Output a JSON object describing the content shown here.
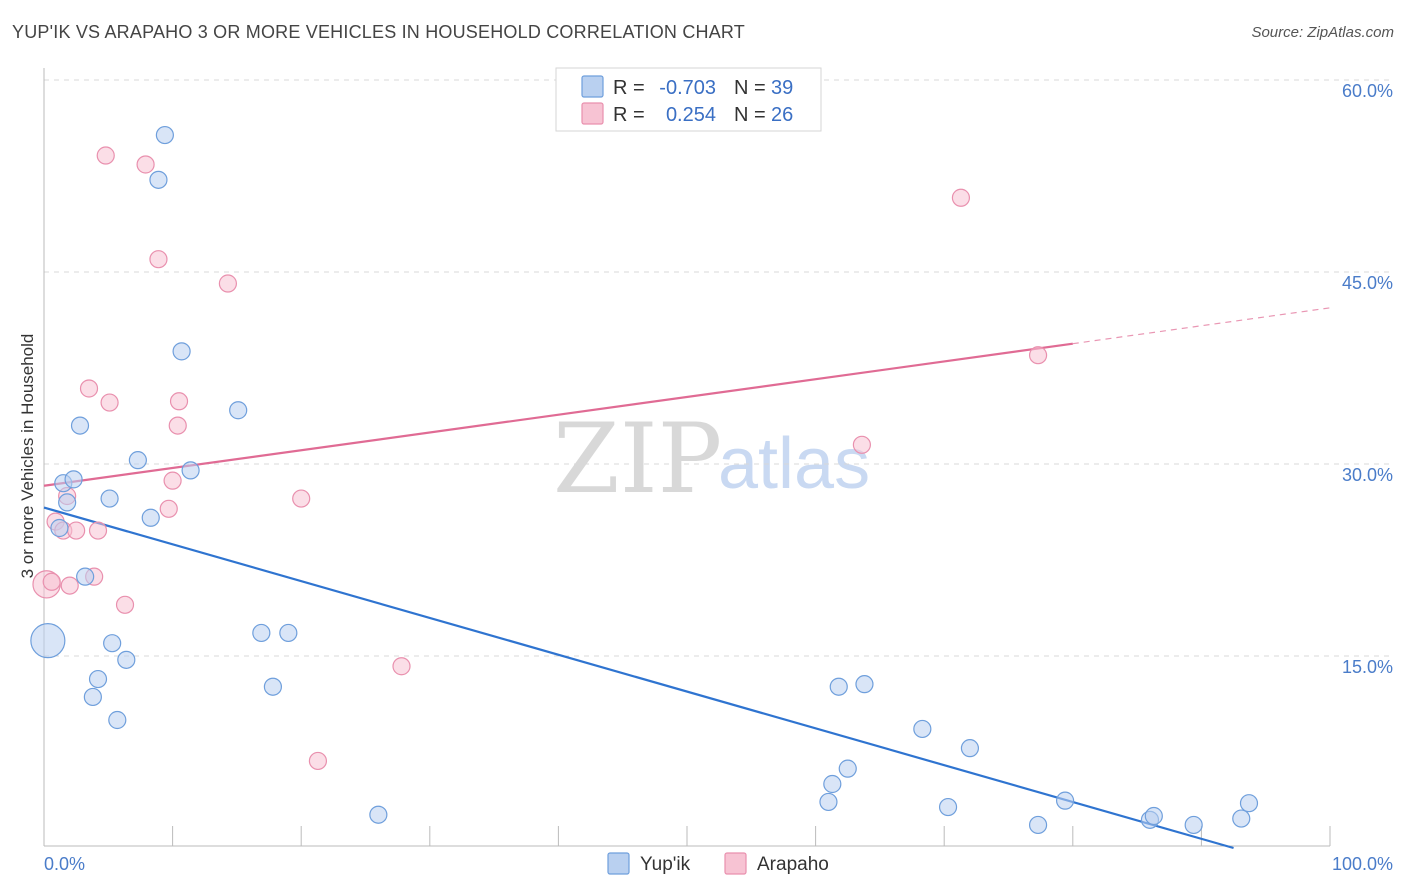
{
  "title": "YUP'IK VS ARAPAHO 3 OR MORE VEHICLES IN HOUSEHOLD CORRELATION CHART",
  "source": "Source: ZipAtlas.com",
  "watermark": {
    "zip": "ZIP",
    "atlas": "atlas"
  },
  "colors": {
    "yupik_fill": "#b9d0f0",
    "yupik_stroke": "#6f9fdc",
    "yupik_line": "#2f74d0",
    "arapaho_fill": "#f7c3d3",
    "arapaho_stroke": "#e990ae",
    "arapaho_line": "#e06b94",
    "grid": "#d8d8d8",
    "axis_text": "#4a7cc9"
  },
  "legend": {
    "r_label": "R =",
    "n_label": "N =",
    "rows": [
      {
        "r": "-0.703",
        "n": "39"
      },
      {
        "r": "0.254",
        "n": "26"
      }
    ]
  },
  "chart_data": {
    "type": "scatter",
    "title": "YUP'IK VS ARAPAHO 3 OR MORE VEHICLES IN HOUSEHOLD CORRELATION CHART",
    "xlabel": "",
    "ylabel": "3 or more Vehicles in Household",
    "xlim": [
      0,
      100
    ],
    "ylim": [
      0,
      63
    ],
    "x_tick_labels": [
      "0.0%",
      "100.0%"
    ],
    "y_ticks": [
      15,
      30,
      45,
      60
    ],
    "y_tick_labels": [
      "15.0%",
      "30.0%",
      "45.0%",
      "60.0%"
    ],
    "grid": true,
    "series": [
      {
        "name": "Yup'ik",
        "points": [
          [
            0.3,
            16.2,
            2.0
          ],
          [
            1.5,
            28.5,
            1
          ],
          [
            1.8,
            27.0,
            1
          ],
          [
            1.2,
            25.0,
            1
          ],
          [
            2.3,
            28.8,
            1
          ],
          [
            2.8,
            33.0,
            1
          ],
          [
            3.2,
            21.2,
            1
          ],
          [
            3.8,
            11.8,
            1
          ],
          [
            4.2,
            13.2,
            1
          ],
          [
            5.1,
            27.3,
            1
          ],
          [
            5.3,
            16.0,
            1
          ],
          [
            5.7,
            10.0,
            1
          ],
          [
            6.4,
            14.7,
            1
          ],
          [
            7.3,
            30.3,
            1
          ],
          [
            8.3,
            25.8,
            1
          ],
          [
            8.9,
            52.2,
            1
          ],
          [
            9.4,
            55.7,
            1
          ],
          [
            10.7,
            38.8,
            1
          ],
          [
            11.4,
            29.5,
            1
          ],
          [
            15.1,
            34.2,
            1
          ],
          [
            16.9,
            16.8,
            1
          ],
          [
            17.8,
            12.6,
            1
          ],
          [
            19.0,
            16.8,
            1
          ],
          [
            26.0,
            2.6,
            1
          ],
          [
            61.0,
            3.6,
            1
          ],
          [
            61.3,
            5.0,
            1
          ],
          [
            61.8,
            12.6,
            1
          ],
          [
            62.5,
            6.2,
            1
          ],
          [
            63.8,
            12.8,
            1
          ],
          [
            68.3,
            9.3,
            1
          ],
          [
            70.3,
            3.2,
            1
          ],
          [
            72.0,
            7.8,
            1
          ],
          [
            77.3,
            1.8,
            1
          ],
          [
            79.4,
            3.7,
            1
          ],
          [
            86.0,
            2.2,
            1
          ],
          [
            86.3,
            2.5,
            1
          ],
          [
            89.4,
            1.8,
            1
          ],
          [
            93.1,
            2.3,
            1
          ],
          [
            93.7,
            3.5,
            1
          ]
        ],
        "trendline": {
          "x": [
            0,
            92.5
          ],
          "y": [
            26.6,
            0
          ]
        }
      },
      {
        "name": "Arapaho",
        "points": [
          [
            0.2,
            20.6,
            1.6
          ],
          [
            0.6,
            20.8,
            1
          ],
          [
            0.9,
            25.5,
            1
          ],
          [
            1.5,
            24.8,
            1
          ],
          [
            1.8,
            27.5,
            1
          ],
          [
            2.0,
            20.5,
            1
          ],
          [
            2.5,
            24.8,
            1
          ],
          [
            3.5,
            35.9,
            1
          ],
          [
            3.9,
            21.2,
            1
          ],
          [
            4.2,
            24.8,
            1
          ],
          [
            5.1,
            34.8,
            1
          ],
          [
            6.3,
            19.0,
            1
          ],
          [
            4.8,
            54.1,
            1
          ],
          [
            7.9,
            53.4,
            1
          ],
          [
            8.9,
            46.0,
            1
          ],
          [
            9.7,
            26.5,
            1
          ],
          [
            10.0,
            28.7,
            1
          ],
          [
            10.4,
            33.0,
            1
          ],
          [
            10.5,
            34.9,
            1
          ],
          [
            14.3,
            44.1,
            1
          ],
          [
            20.0,
            27.3,
            1
          ],
          [
            21.3,
            6.8,
            1
          ],
          [
            27.8,
            14.2,
            1
          ],
          [
            63.6,
            31.5,
            1
          ],
          [
            71.3,
            50.8,
            1
          ],
          [
            77.3,
            38.5,
            1
          ]
        ],
        "trendline": {
          "x": [
            0,
            80
          ],
          "y": [
            28.3,
            39.4
          ]
        },
        "trendline_dashed": {
          "x": [
            80,
            100
          ],
          "y": [
            39.4,
            42.2
          ]
        }
      }
    ]
  },
  "bottom_legend": [
    "Yup'ik",
    "Arapaho"
  ]
}
